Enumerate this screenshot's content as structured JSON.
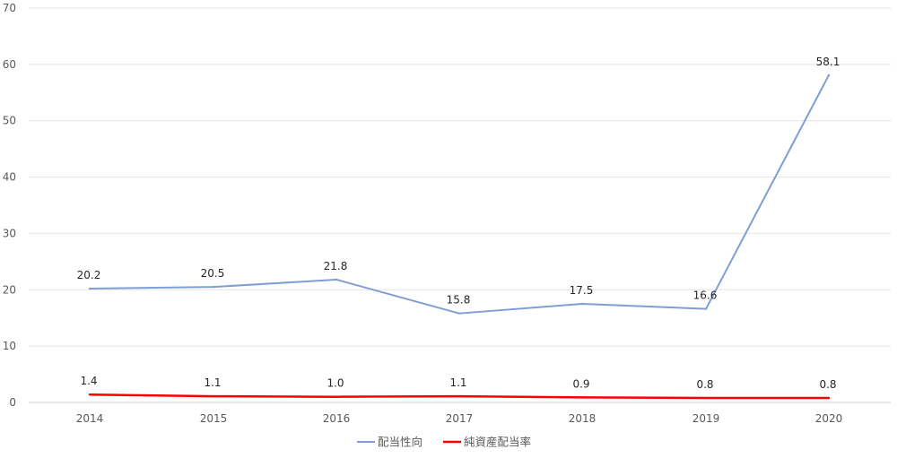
{
  "chart_data": {
    "type": "line",
    "categories": [
      "2014",
      "2015",
      "2016",
      "2017",
      "2018",
      "2019",
      "2020"
    ],
    "series": [
      {
        "name": "配当性向",
        "color": "#7f9fd4",
        "values": [
          20.2,
          20.5,
          21.8,
          15.8,
          17.5,
          16.6,
          58.1
        ],
        "labels": [
          "20.2",
          "20.5",
          "21.8",
          "15.8",
          "17.5",
          "16.6",
          "58.1"
        ]
      },
      {
        "name": "純資産配当率",
        "color": "#ff0000",
        "values": [
          1.4,
          1.1,
          1.0,
          1.1,
          0.9,
          0.8,
          0.8
        ],
        "labels": [
          "1.4",
          "1.1",
          "1.0",
          "1.1",
          "0.9",
          "0.8",
          "0.8"
        ]
      }
    ],
    "yticks": [
      "0",
      "10",
      "20",
      "30",
      "40",
      "50",
      "60",
      "70"
    ],
    "ylim": [
      0,
      70
    ],
    "grid": true,
    "legend": "bottom-center",
    "title": "",
    "xlabel": "",
    "ylabel": ""
  }
}
